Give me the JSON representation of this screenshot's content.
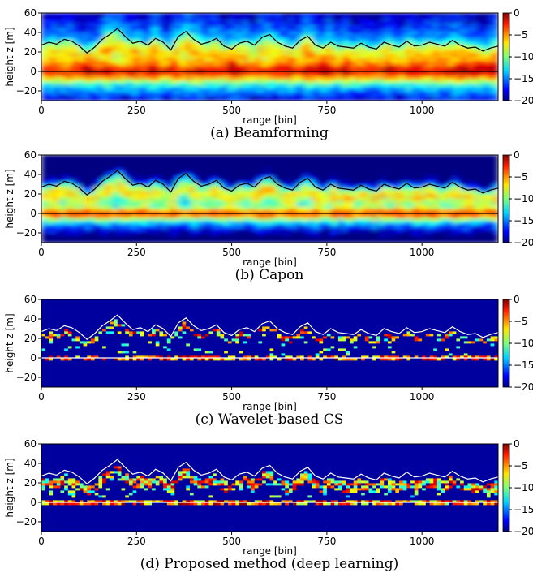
{
  "figure": {
    "panels": [
      {
        "caption": "(a) Beamforming",
        "method": "beamforming",
        "xlabel": "range [bin]",
        "ylabel": "height z [m]",
        "xlim": [
          0,
          1200
        ],
        "ylim": [
          -30,
          60
        ],
        "x_ticks": [
          "0",
          "250",
          "500",
          "750",
          "1000"
        ],
        "y_ticks": [
          "60",
          "40",
          "20",
          "0",
          "−20"
        ],
        "colorbar_ticks": [
          "0",
          "−5",
          "−10",
          "−15",
          "−20"
        ],
        "colorbar_range": [
          -20,
          0
        ],
        "colormap": "jet",
        "overlay_color": "#000000"
      },
      {
        "caption": "(b) Capon",
        "method": "capon",
        "xlabel": "range [bin]",
        "ylabel": "height z [m]",
        "xlim": [
          0,
          1200
        ],
        "ylim": [
          -30,
          60
        ],
        "x_ticks": [
          "0",
          "250",
          "500",
          "750",
          "1000"
        ],
        "y_ticks": [
          "60",
          "40",
          "20",
          "0",
          "−20"
        ],
        "colorbar_ticks": [
          "0",
          "−5",
          "−10",
          "−15",
          "−20"
        ],
        "colorbar_range": [
          -20,
          0
        ],
        "colormap": "jet",
        "overlay_color": "#000000"
      },
      {
        "caption": "(c) Wavelet-based CS",
        "method": "wavelet",
        "xlabel": "range [bin]",
        "ylabel": "height z [m]",
        "xlim": [
          0,
          1200
        ],
        "ylim": [
          -30,
          60
        ],
        "x_ticks": [
          "0",
          "250",
          "500",
          "750",
          "1000"
        ],
        "y_ticks": [
          "60",
          "40",
          "20",
          "0",
          "−20"
        ],
        "colorbar_ticks": [
          "0",
          "−5",
          "−10",
          "−15",
          "−20"
        ],
        "colorbar_range": [
          -20,
          0
        ],
        "colormap": "jet",
        "overlay_color": "#ffffff"
      },
      {
        "caption": "(d) Proposed method (deep learning)",
        "method": "deep",
        "xlabel": "range [bin]",
        "ylabel": "height z [m]",
        "xlim": [
          0,
          1200
        ],
        "ylim": [
          -30,
          60
        ],
        "x_ticks": [
          "0",
          "250",
          "500",
          "750",
          "1000"
        ],
        "y_ticks": [
          "60",
          "40",
          "20",
          "0",
          "−20"
        ],
        "colorbar_ticks": [
          "0",
          "−5",
          "−10",
          "−15",
          "−20"
        ],
        "colorbar_range": [
          -20,
          0
        ],
        "colormap": "jet",
        "overlay_color": "#ffffff"
      }
    ]
  },
  "chart_data": {
    "type": "heatmap",
    "xlabel": "range [bin]",
    "ylabel": "height z [m]",
    "xlim": [
      0,
      1200
    ],
    "ylim": [
      -30,
      60
    ],
    "colorbar_range": [
      -20,
      0
    ],
    "canopy_height_profile": {
      "x": [
        0,
        20,
        40,
        60,
        80,
        100,
        120,
        140,
        160,
        180,
        200,
        220,
        240,
        260,
        280,
        300,
        320,
        340,
        360,
        380,
        400,
        420,
        440,
        460,
        480,
        500,
        520,
        540,
        560,
        580,
        600,
        620,
        640,
        660,
        680,
        700,
        720,
        740,
        760,
        780,
        800,
        820,
        840,
        860,
        880,
        900,
        920,
        940,
        960,
        980,
        1000,
        1020,
        1040,
        1060,
        1080,
        1100,
        1120,
        1140,
        1160,
        1180,
        1200
      ],
      "y": [
        27,
        30,
        28,
        33,
        31,
        26,
        19,
        25,
        33,
        38,
        44,
        36,
        29,
        31,
        27,
        34,
        30,
        22,
        36,
        41,
        33,
        28,
        30,
        34,
        26,
        23,
        29,
        31,
        27,
        35,
        38,
        30,
        26,
        24,
        32,
        36,
        27,
        24,
        30,
        26,
        25,
        24,
        29,
        25,
        23,
        30,
        27,
        25,
        31,
        26,
        27,
        30,
        28,
        26,
        32,
        27,
        24,
        25,
        21,
        24,
        26
      ]
    },
    "ground_height": 0
  }
}
